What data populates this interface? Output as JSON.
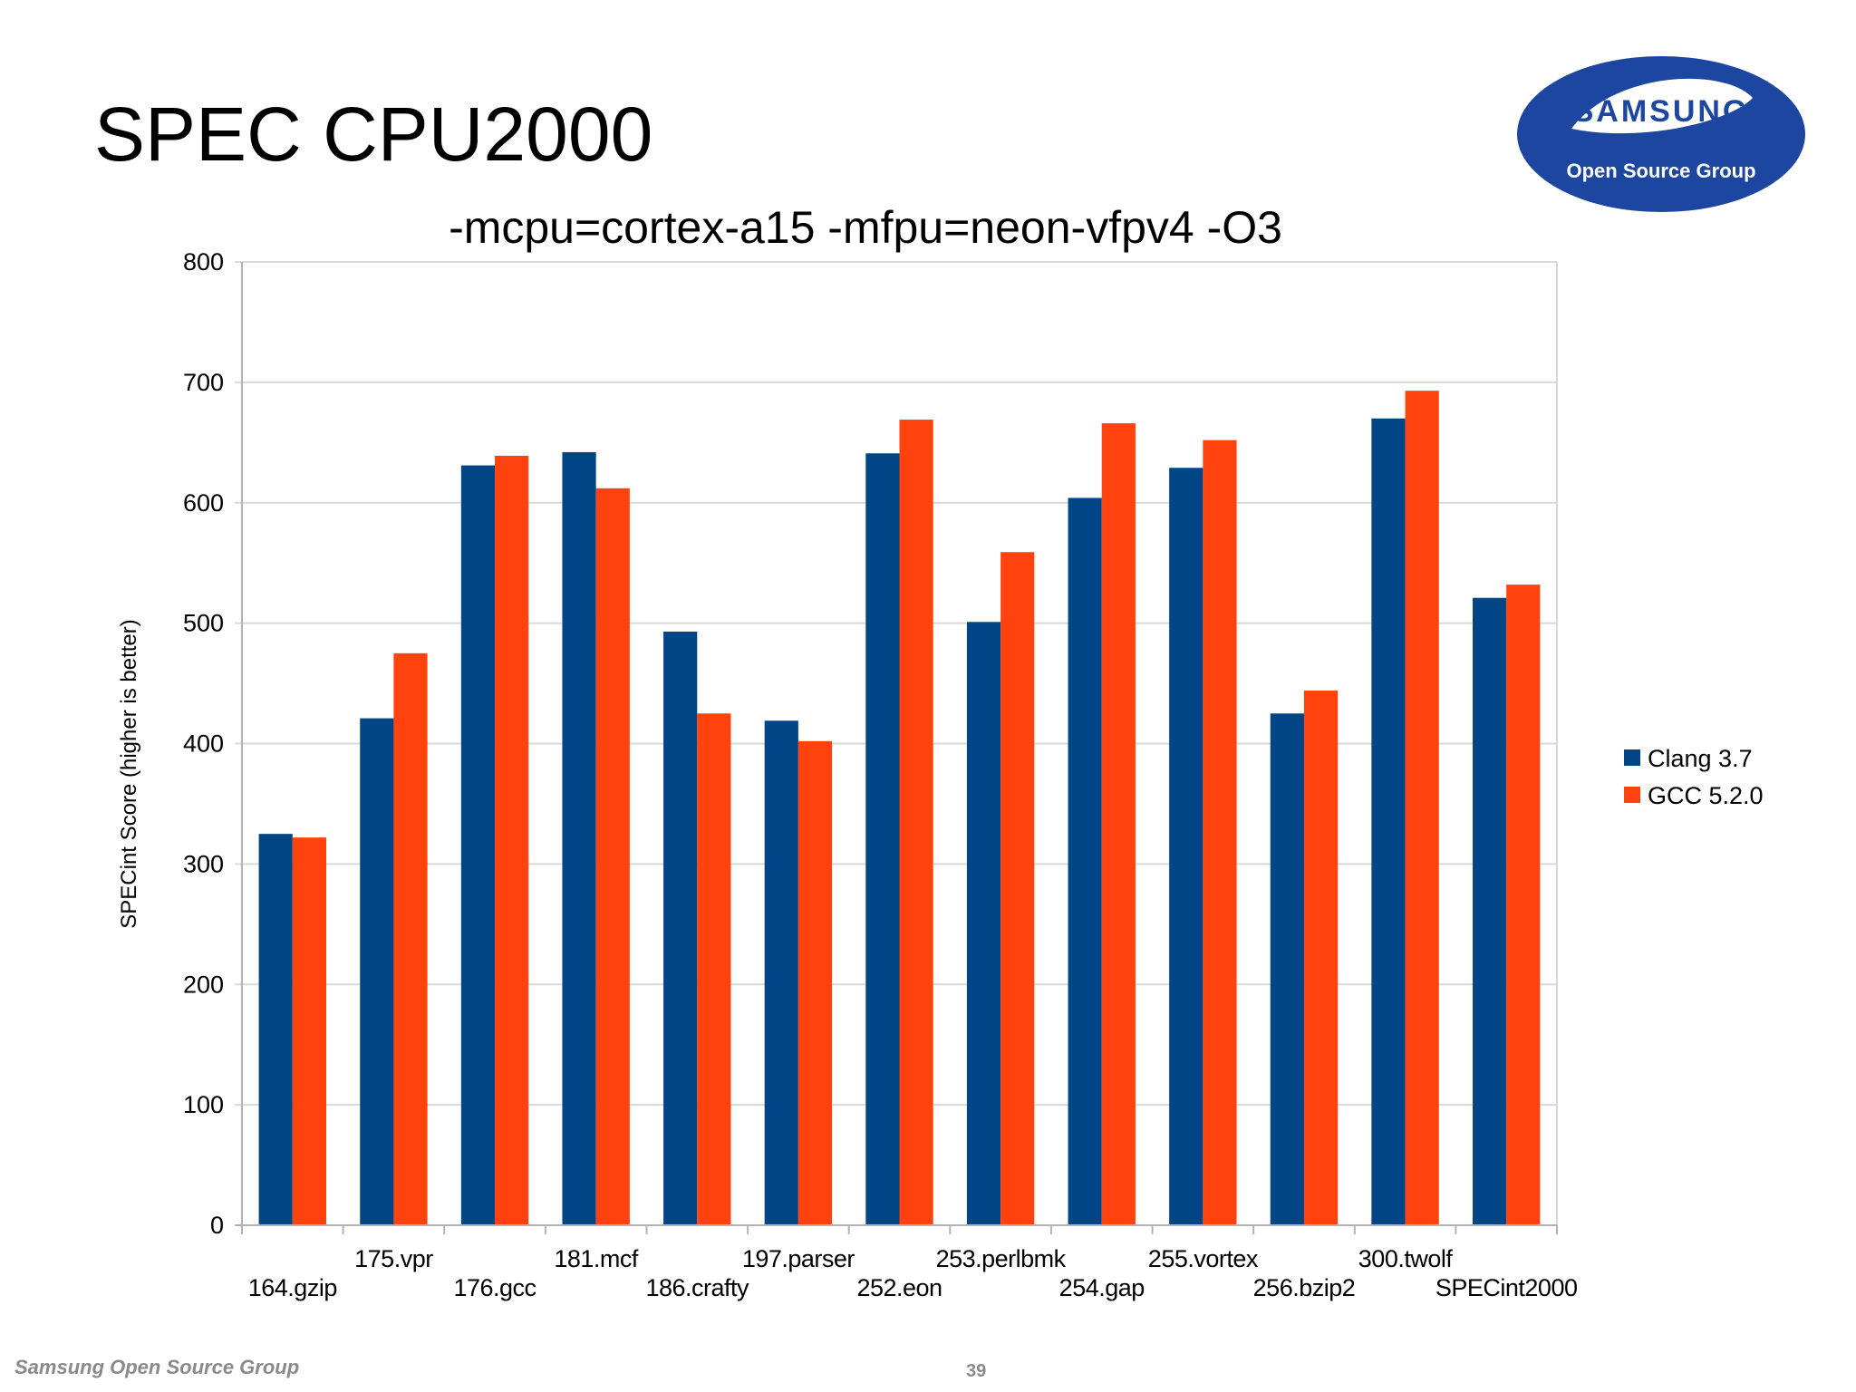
{
  "slide": {
    "title": "SPEC CPU2000",
    "footer_brand": "Samsung Open Source Group",
    "page_number": "39"
  },
  "logo": {
    "name": "samsung-open-source-group-logo",
    "wordmark": "SAMSUNG",
    "tagline": "Open Source Group",
    "colors": {
      "oval": "#1d46a0",
      "band": "#ffffff",
      "text": "#ffffff"
    }
  },
  "colors": {
    "clang": "#004586",
    "gcc": "#ff420e",
    "grid": "#d9d9d9",
    "axis": "#b3b3b3",
    "text": "#000000"
  },
  "chart_data": {
    "type": "bar",
    "title": "-mcpu=cortex-a15 -mfpu=neon-vfpv4 -O3",
    "xlabel": "",
    "ylabel": "SPECint Score (higher is better)",
    "ylim": [
      0,
      800
    ],
    "yticks": [
      0,
      100,
      200,
      300,
      400,
      500,
      600,
      700,
      800
    ],
    "grid": true,
    "legend_position": "right",
    "categories": [
      "164.gzip",
      "175.vpr",
      "176.gcc",
      "181.mcf",
      "186.crafty",
      "197.parser",
      "252.eon",
      "253.perlbmk",
      "254.gap",
      "255.vortex",
      "256.bzip2",
      "300.twolf",
      "SPECint2000"
    ],
    "series": [
      {
        "name": "Clang 3.7",
        "color": "#004586",
        "values": [
          325,
          421,
          631,
          642,
          493,
          419,
          641,
          501,
          604,
          629,
          425,
          670,
          521
        ]
      },
      {
        "name": "GCC 5.2.0",
        "color": "#ff420e",
        "values": [
          322,
          475,
          639,
          612,
          425,
          402,
          669,
          559,
          666,
          652,
          444,
          693,
          532
        ]
      }
    ]
  }
}
